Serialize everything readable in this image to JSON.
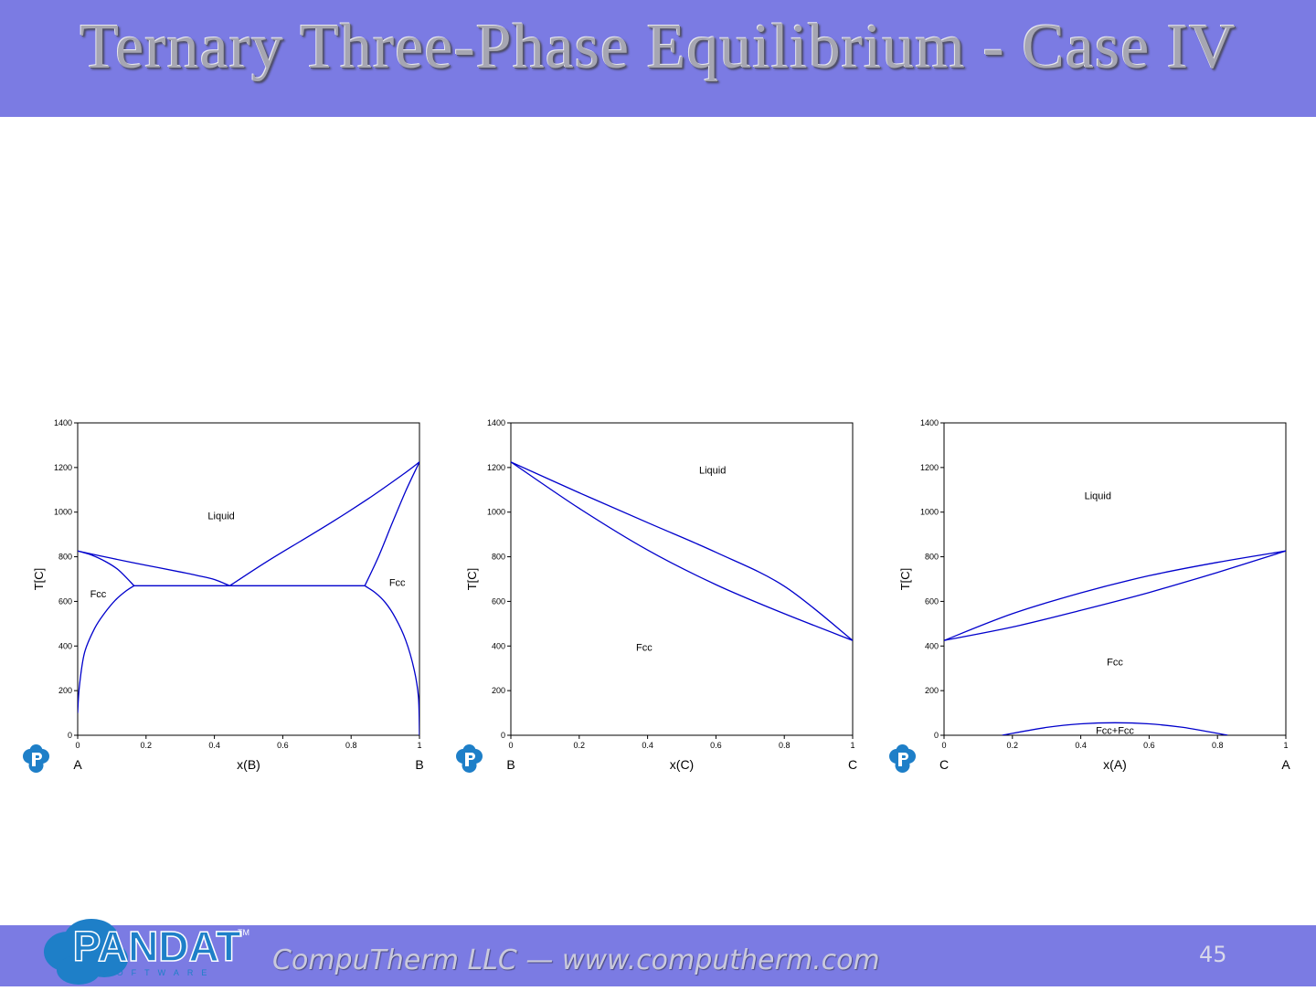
{
  "slide": {
    "title": "Ternary Three-Phase Equilibrium - Case IV",
    "footer_text": "CompuTherm LLC — www.computherm.com",
    "page_number": "45",
    "logo": {
      "icon": "pandat-logo",
      "text": "PANDAT",
      "subtext": "SOFTWARE",
      "tm": "TM"
    },
    "colors": {
      "bar": "#7b7be3",
      "curve": "#0000cc"
    }
  },
  "chart_data": [
    {
      "type": "line",
      "xlabel": "x(B)",
      "ylabel": "T[C]",
      "left_component": "A",
      "right_component": "B",
      "xlim": [
        0,
        1
      ],
      "ylim": [
        0,
        1400
      ],
      "xticks": [
        "0",
        "0.2",
        "0.4",
        "0.6",
        "0.8",
        "1"
      ],
      "yticks": [
        "0",
        "200",
        "400",
        "600",
        "800",
        "1000",
        "1200",
        "1400"
      ],
      "region_labels": [
        {
          "text": "Liquid",
          "x": 0.42,
          "y": 985
        },
        {
          "text": "Fcc",
          "x": 0.06,
          "y": 635
        },
        {
          "text": "Fcc",
          "x": 0.935,
          "y": 685
        }
      ],
      "series": [
        {
          "x": [
            0,
            0.04,
            0.08,
            0.12,
            0.165
          ],
          "y": [
            826,
            808,
            780,
            740,
            670
          ]
        },
        {
          "x": [
            0,
            0.1,
            0.2,
            0.3,
            0.35,
            0.4,
            0.445
          ],
          "y": [
            826,
            793,
            762,
            732,
            716,
            698,
            670
          ]
        },
        {
          "x": [
            0.165,
            0.84
          ],
          "y": [
            670,
            670
          ]
        },
        {
          "x": [
            0.445,
            0.55,
            0.65,
            0.75,
            0.85,
            0.95,
            1
          ],
          "y": [
            670,
            775,
            868,
            961,
            1060,
            1167,
            1225
          ]
        },
        {
          "x": [
            0.84,
            0.88,
            0.92,
            0.96,
            1
          ],
          "y": [
            670,
            800,
            950,
            1095,
            1225
          ]
        },
        {
          "x": [
            0,
            0.005,
            0.02,
            0.05,
            0.08,
            0.11,
            0.14,
            0.165
          ],
          "y": [
            100,
            220,
            370,
            480,
            550,
            605,
            645,
            670
          ]
        },
        {
          "x": [
            0.84,
            0.87,
            0.9,
            0.93,
            0.96,
            0.985,
            0.997,
            1
          ],
          "y": [
            670,
            640,
            595,
            525,
            425,
            290,
            170,
            0
          ]
        }
      ]
    },
    {
      "type": "line",
      "xlabel": "x(C)",
      "ylabel": "T[C]",
      "left_component": "B",
      "right_component": "C",
      "xlim": [
        0,
        1
      ],
      "ylim": [
        0,
        1400
      ],
      "xticks": [
        "0",
        "0.2",
        "0.4",
        "0.6",
        "0.8",
        "1"
      ],
      "yticks": [
        "0",
        "200",
        "400",
        "600",
        "800",
        "1000",
        "1200",
        "1400"
      ],
      "region_labels": [
        {
          "text": "Liquid",
          "x": 0.59,
          "y": 1190
        },
        {
          "text": "Fcc",
          "x": 0.39,
          "y": 395
        }
      ],
      "series": [
        {
          "x": [
            0,
            0.2,
            0.4,
            0.6,
            0.8,
            1
          ],
          "y": [
            1225,
            1087,
            953,
            820,
            668,
            425
          ]
        },
        {
          "x": [
            0,
            0.2,
            0.4,
            0.6,
            0.8,
            1
          ],
          "y": [
            1225,
            1017,
            830,
            675,
            545,
            425
          ]
        }
      ]
    },
    {
      "type": "line",
      "xlabel": "x(A)",
      "ylabel": "T[C]",
      "left_component": "C",
      "right_component": "A",
      "xlim": [
        0,
        1
      ],
      "ylim": [
        0,
        1400
      ],
      "xticks": [
        "0",
        "0.2",
        "0.4",
        "0.6",
        "0.8",
        "1"
      ],
      "yticks": [
        "0",
        "200",
        "400",
        "600",
        "800",
        "1000",
        "1200",
        "1400"
      ],
      "region_labels": [
        {
          "text": "Liquid",
          "x": 0.45,
          "y": 1075
        },
        {
          "text": "Fcc",
          "x": 0.5,
          "y": 330
        },
        {
          "text": "Fcc+Fcc",
          "x": 0.5,
          "y": 22
        }
      ],
      "series": [
        {
          "x": [
            0,
            0.2,
            0.4,
            0.6,
            0.8,
            1
          ],
          "y": [
            425,
            545,
            638,
            715,
            775,
            826
          ]
        },
        {
          "x": [
            0,
            0.2,
            0.4,
            0.6,
            0.8,
            1
          ],
          "y": [
            425,
            485,
            560,
            640,
            730,
            826
          ]
        },
        {
          "x": [
            0.17,
            0.3,
            0.4,
            0.5,
            0.6,
            0.7,
            0.83
          ],
          "y": [
            0,
            35,
            51,
            56,
            51,
            35,
            0
          ]
        }
      ]
    }
  ]
}
